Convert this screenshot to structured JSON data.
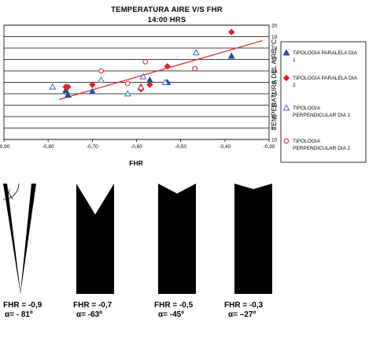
{
  "chart_data": {
    "type": "scatter",
    "title": "TEMPERATURA AIRE V/S FHR",
    "subtitle": "14:00 HRS",
    "xlabel": "FHR",
    "ylabel": "TEMPERATURA DEL AIRE °C",
    "xlim": [
      -0.9,
      -0.3
    ],
    "ylim": [
      10,
      20
    ],
    "x_ticks": [
      "-0,90",
      "-0,80",
      "-0,70",
      "-0,60",
      "-0,50",
      "-0,40",
      "-0,30"
    ],
    "y_ticks": [
      "10",
      "11",
      "12",
      "13",
      "14",
      "15",
      "16",
      "17",
      "18",
      "19",
      "20"
    ],
    "grid": "horizontal",
    "legend_position": "right",
    "series": [
      {
        "name": "TIPOLOGIA PARALELA DIA 1",
        "marker": "triangle-filled",
        "color": "#1f4e9c",
        "points": [
          [
            -0.76,
            14.3
          ],
          [
            -0.755,
            13.9
          ],
          [
            -0.7,
            14.2
          ],
          [
            -0.59,
            14.6
          ],
          [
            -0.57,
            15.2
          ],
          [
            -0.53,
            15.0
          ],
          [
            -0.385,
            17.3
          ]
        ]
      },
      {
        "name": "TIPOLOGIA PARALELA DIA 2",
        "marker": "diamond-filled",
        "color": "#e0201e",
        "points": [
          [
            -0.76,
            14.6
          ],
          [
            -0.755,
            14.6
          ],
          [
            -0.7,
            14.8
          ],
          [
            -0.59,
            14.4
          ],
          [
            -0.57,
            14.8
          ],
          [
            -0.53,
            16.4
          ],
          [
            -0.385,
            19.4
          ]
        ]
      },
      {
        "name": "TIPOLOGIA PERPENDICULAR DIA 1",
        "marker": "triangle-open",
        "color": "#2e6eb6",
        "points": [
          [
            -0.79,
            14.6
          ],
          [
            -0.68,
            15.2
          ],
          [
            -0.62,
            14.0
          ],
          [
            -0.585,
            15.5
          ],
          [
            -0.535,
            15.0
          ],
          [
            -0.465,
            17.6
          ]
        ]
      },
      {
        "name": "TIPOLOGIA PERPENDICULAR DIA 2",
        "marker": "circle-open",
        "color": "#e0201e",
        "points": [
          [
            -0.68,
            16.0
          ],
          [
            -0.62,
            14.9
          ],
          [
            -0.58,
            16.8
          ],
          [
            -0.59,
            14.5
          ],
          [
            -0.468,
            16.2
          ]
        ]
      }
    ],
    "trendline": {
      "color": "#e0201e",
      "from": [
        -0.775,
        13.5
      ],
      "to": [
        -0.315,
        18.65
      ]
    }
  },
  "shapes": [
    {
      "caption_fhr": "FHR = -0,9",
      "caption_alpha": "α= - 81º",
      "angle_label": "α",
      "notch_depth": 0.8
    },
    {
      "caption_fhr": "FHR = -0,7",
      "caption_alpha": "α= -63º",
      "notch_depth": 0.28
    },
    {
      "caption_fhr": "FHR = -0,5",
      "caption_alpha": "α= -45º",
      "notch_depth": 0.09
    },
    {
      "caption_fhr": "FHR = -0,3",
      "caption_alpha": "α= –27º",
      "notch_depth": 0.05
    }
  ]
}
